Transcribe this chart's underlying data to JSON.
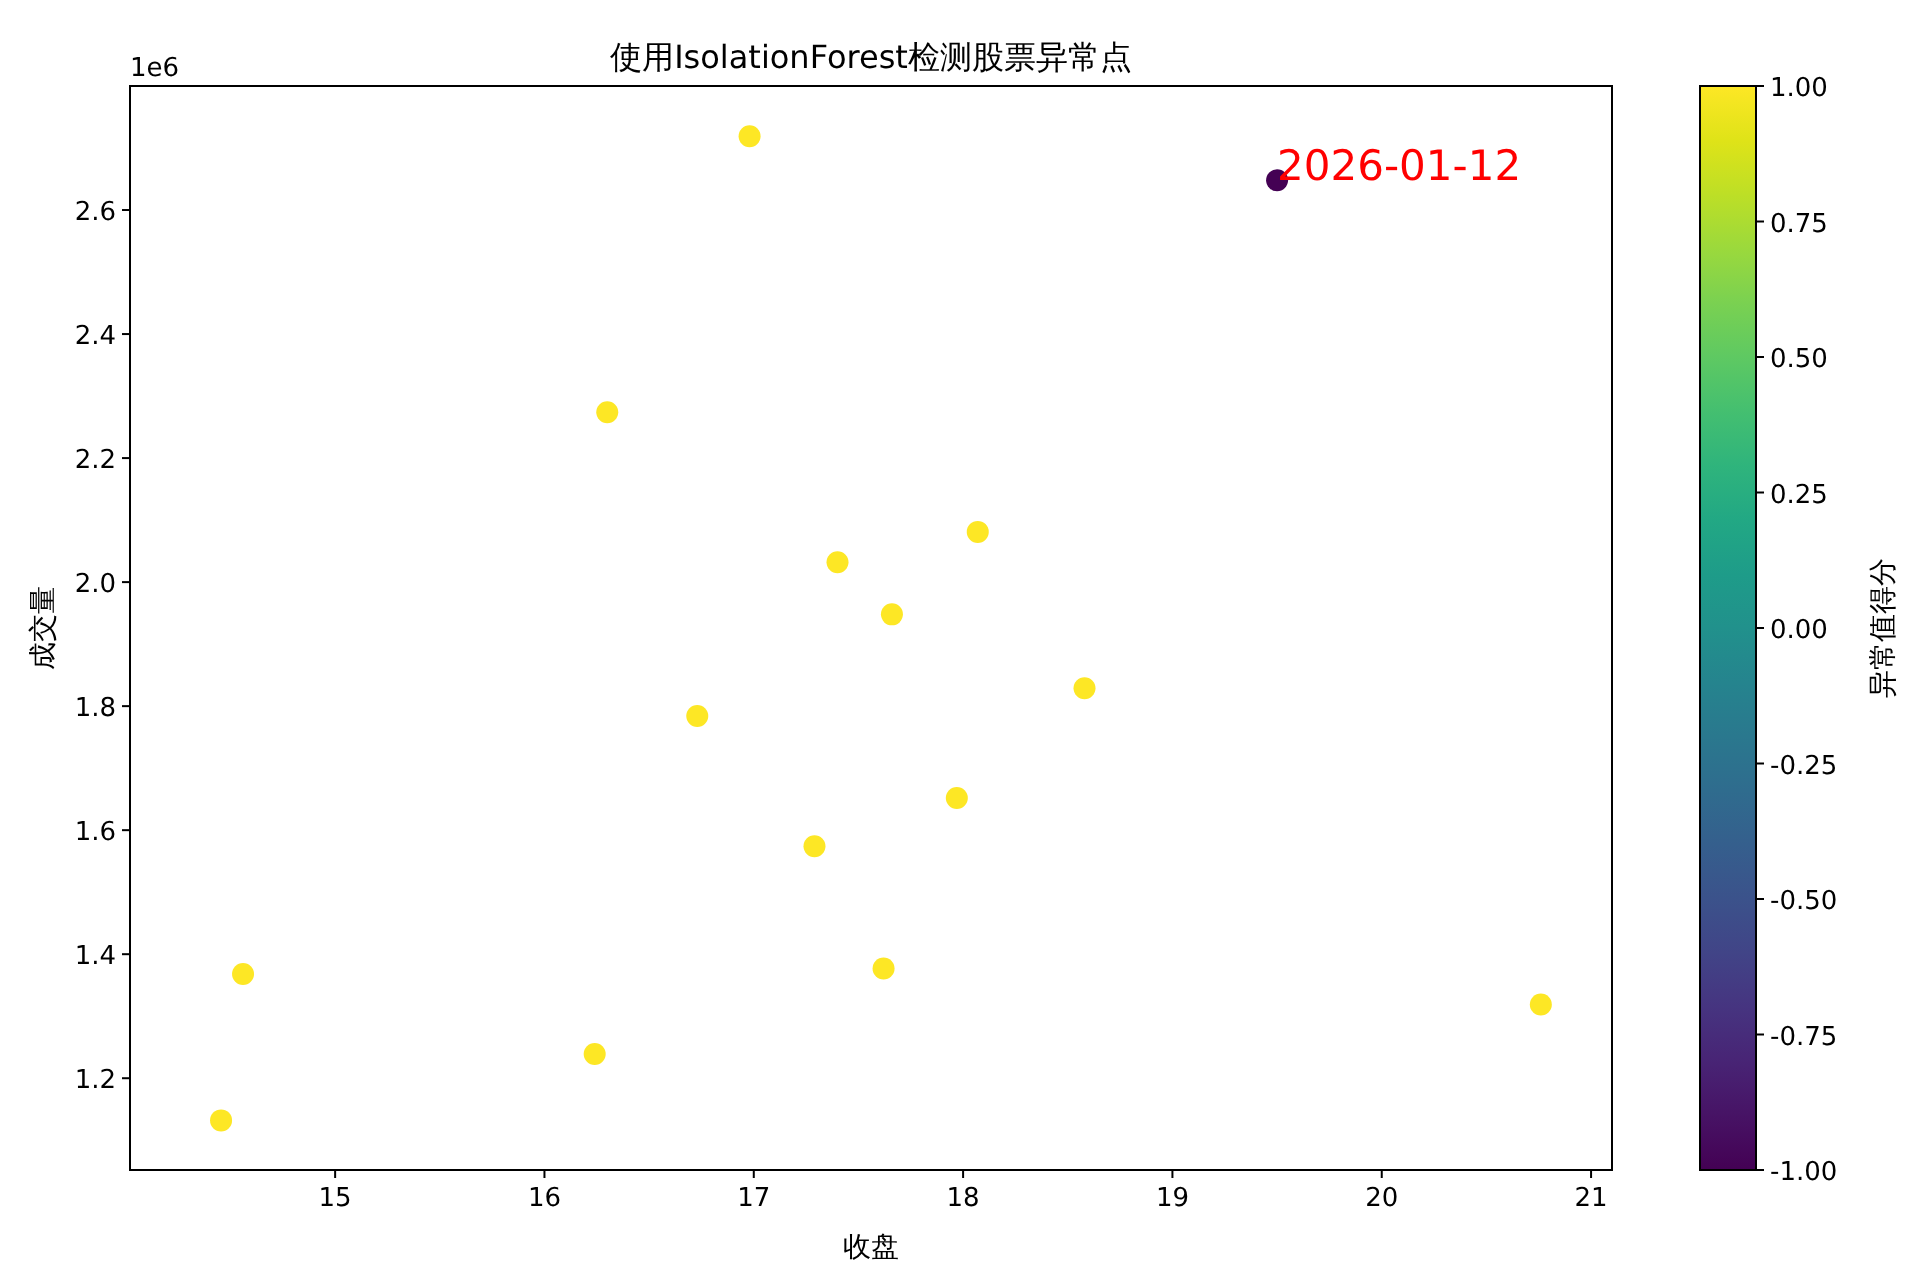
{
  "chart_data": {
    "type": "scatter",
    "title": "使用IsolationForest检测股票异常点",
    "xlabel": "收盘",
    "ylabel": "成交量",
    "clabel": "异常值得分",
    "x": [
      14.455,
      14.56,
      16.24,
      16.3,
      16.73,
      16.98,
      17.29,
      17.4,
      17.62,
      17.66,
      17.97,
      18.07,
      18.58,
      19.5,
      20.76
    ],
    "values": [
      1.132,
      1.368,
      1.239,
      2.274,
      1.784,
      2.719,
      1.574,
      2.032,
      1.377,
      1.948,
      1.652,
      2.081,
      1.829,
      2.648,
      1.319
    ],
    "cvalues": [
      1,
      1,
      1,
      1,
      1,
      1,
      1,
      1,
      1,
      1,
      1,
      1,
      1,
      -1,
      1
    ],
    "marker": "circle",
    "xlim": [
      14.02,
      21.1
    ],
    "xticks": [
      15,
      16,
      17,
      18,
      19,
      20,
      21
    ],
    "ylim": [
      1.052,
      2.8
    ],
    "yticks": [
      1.2,
      1.4,
      1.6,
      1.8,
      {
        "value": 2,
        "label": "2.0"
      },
      2.2,
      2.4,
      2.6
    ],
    "clim": [
      -1,
      1
    ],
    "cticks": [
      {
        "value": -1,
        "label": "-1.00"
      },
      {
        "value": -0.75,
        "label": "-0.75"
      },
      {
        "value": -0.5,
        "label": "-0.50"
      },
      {
        "value": -0.25,
        "label": "-0.25"
      },
      {
        "value": 0,
        "label": "0.00"
      },
      {
        "value": 0.25,
        "label": "0.25"
      },
      {
        "value": 0.5,
        "label": "0.50"
      },
      {
        "value": 0.75,
        "label": "0.75"
      },
      {
        "value": 1,
        "label": "1.00"
      }
    ],
    "annotations": [
      "1e6",
      {
        "text": "2026-01-12",
        "x": 19.5,
        "y": 2.648
      }
    ],
    "grid": false
  }
}
